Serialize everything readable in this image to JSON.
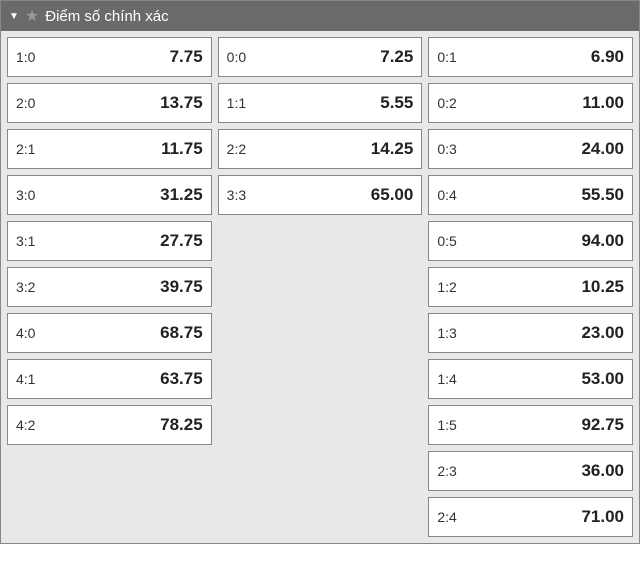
{
  "header": {
    "title": "Điểm số chính xác"
  },
  "columns": [
    [
      {
        "score": "1:0",
        "value": "7.75"
      },
      {
        "score": "2:0",
        "value": "13.75"
      },
      {
        "score": "2:1",
        "value": "11.75"
      },
      {
        "score": "3:0",
        "value": "31.25"
      },
      {
        "score": "3:1",
        "value": "27.75"
      },
      {
        "score": "3:2",
        "value": "39.75"
      },
      {
        "score": "4:0",
        "value": "68.75"
      },
      {
        "score": "4:1",
        "value": "63.75"
      },
      {
        "score": "4:2",
        "value": "78.25"
      }
    ],
    [
      {
        "score": "0:0",
        "value": "7.25"
      },
      {
        "score": "1:1",
        "value": "5.55"
      },
      {
        "score": "2:2",
        "value": "14.25"
      },
      {
        "score": "3:3",
        "value": "65.00"
      }
    ],
    [
      {
        "score": "0:1",
        "value": "6.90"
      },
      {
        "score": "0:2",
        "value": "11.00"
      },
      {
        "score": "0:3",
        "value": "24.00"
      },
      {
        "score": "0:4",
        "value": "55.50"
      },
      {
        "score": "0:5",
        "value": "94.00"
      },
      {
        "score": "1:2",
        "value": "10.25"
      },
      {
        "score": "1:3",
        "value": "23.00"
      },
      {
        "score": "1:4",
        "value": "53.00"
      },
      {
        "score": "1:5",
        "value": "92.75"
      },
      {
        "score": "2:3",
        "value": "36.00"
      },
      {
        "score": "2:4",
        "value": "71.00"
      }
    ]
  ]
}
